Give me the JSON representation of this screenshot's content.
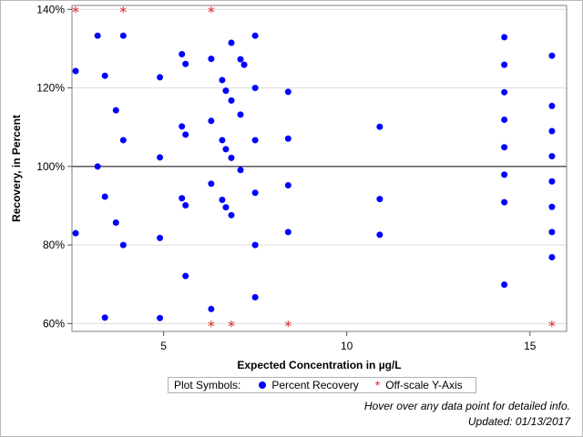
{
  "chart_data": {
    "type": "scatter",
    "title": "",
    "xlabel": "Expected Concentration in µg/L",
    "ylabel": "Recovery, in Percent",
    "xlim": [
      2.5,
      16
    ],
    "ylim": [
      58,
      141
    ],
    "x_ticks": [
      5,
      10,
      15
    ],
    "x_tick_labels": [
      "5",
      "10",
      "15"
    ],
    "y_ticks": [
      60,
      80,
      100,
      120,
      140
    ],
    "y_tick_labels": [
      "60%",
      "80%",
      "100%",
      "120%",
      "140%"
    ],
    "reference_line": 100,
    "grid": "horizontal",
    "series": [
      {
        "name": "Percent Recovery",
        "color": "#0000ff",
        "marker": "circle",
        "points": [
          {
            "x": 2.6,
            "y": 124.3
          },
          {
            "x": 2.6,
            "y": 83
          },
          {
            "x": 3.2,
            "y": 133.3
          },
          {
            "x": 3.2,
            "y": 100
          },
          {
            "x": 3.4,
            "y": 123.1
          },
          {
            "x": 3.4,
            "y": 92.3
          },
          {
            "x": 3.4,
            "y": 61.5
          },
          {
            "x": 3.7,
            "y": 114.3
          },
          {
            "x": 3.7,
            "y": 85.7
          },
          {
            "x": 3.9,
            "y": 133.3
          },
          {
            "x": 3.9,
            "y": 106.7
          },
          {
            "x": 3.9,
            "y": 80
          },
          {
            "x": 4.9,
            "y": 122.7
          },
          {
            "x": 4.9,
            "y": 102.3
          },
          {
            "x": 4.9,
            "y": 81.8
          },
          {
            "x": 4.9,
            "y": 61.4
          },
          {
            "x": 5.5,
            "y": 128.6
          },
          {
            "x": 5.5,
            "y": 110.2
          },
          {
            "x": 5.5,
            "y": 91.9
          },
          {
            "x": 5.6,
            "y": 126.1
          },
          {
            "x": 5.6,
            "y": 108.1
          },
          {
            "x": 5.6,
            "y": 90.1
          },
          {
            "x": 5.6,
            "y": 72.1
          },
          {
            "x": 6.3,
            "y": 127.4
          },
          {
            "x": 6.3,
            "y": 111.6
          },
          {
            "x": 6.3,
            "y": 95.6
          },
          {
            "x": 6.3,
            "y": 63.7
          },
          {
            "x": 6.6,
            "y": 122
          },
          {
            "x": 6.6,
            "y": 106.7
          },
          {
            "x": 6.6,
            "y": 91.5
          },
          {
            "x": 6.7,
            "y": 119.3
          },
          {
            "x": 6.7,
            "y": 104.4
          },
          {
            "x": 6.7,
            "y": 89.6
          },
          {
            "x": 6.85,
            "y": 131.5
          },
          {
            "x": 6.85,
            "y": 116.8
          },
          {
            "x": 6.85,
            "y": 102.2
          },
          {
            "x": 6.85,
            "y": 87.6
          },
          {
            "x": 7.1,
            "y": 127.3
          },
          {
            "x": 7.1,
            "y": 113.2
          },
          {
            "x": 7.1,
            "y": 99.1
          },
          {
            "x": 7.2,
            "y": 125.9
          },
          {
            "x": 7.5,
            "y": 133.3
          },
          {
            "x": 7.5,
            "y": 120
          },
          {
            "x": 7.5,
            "y": 106.7
          },
          {
            "x": 7.5,
            "y": 93.3
          },
          {
            "x": 7.5,
            "y": 80
          },
          {
            "x": 7.5,
            "y": 66.7
          },
          {
            "x": 8.4,
            "y": 119
          },
          {
            "x": 8.4,
            "y": 107.1
          },
          {
            "x": 8.4,
            "y": 95.2
          },
          {
            "x": 8.4,
            "y": 83.3
          },
          {
            "x": 10.9,
            "y": 110.1
          },
          {
            "x": 10.9,
            "y": 91.7
          },
          {
            "x": 10.9,
            "y": 82.6
          },
          {
            "x": 14.3,
            "y": 132.9
          },
          {
            "x": 14.3,
            "y": 125.9
          },
          {
            "x": 14.3,
            "y": 118.9
          },
          {
            "x": 14.3,
            "y": 111.9
          },
          {
            "x": 14.3,
            "y": 104.9
          },
          {
            "x": 14.3,
            "y": 97.9
          },
          {
            "x": 14.3,
            "y": 90.9
          },
          {
            "x": 14.3,
            "y": 69.9
          },
          {
            "x": 15.6,
            "y": 128.2
          },
          {
            "x": 15.6,
            "y": 115.4
          },
          {
            "x": 15.6,
            "y": 109
          },
          {
            "x": 15.6,
            "y": 102.6
          },
          {
            "x": 15.6,
            "y": 96.2
          },
          {
            "x": 15.6,
            "y": 89.7
          },
          {
            "x": 15.6,
            "y": 83.3
          },
          {
            "x": 15.6,
            "y": 76.9
          }
        ]
      },
      {
        "name": "Off-scale Y-Axis",
        "color": "#e02020",
        "marker": "asterisk",
        "points": [
          {
            "x": 2.6,
            "y": 140
          },
          {
            "x": 3.9,
            "y": 140
          },
          {
            "x": 6.3,
            "y": 140
          },
          {
            "x": 6.3,
            "y": 60
          },
          {
            "x": 6.85,
            "y": 60
          },
          {
            "x": 8.4,
            "y": 60
          },
          {
            "x": 15.6,
            "y": 60
          }
        ]
      }
    ]
  },
  "legend": {
    "title": "Plot Symbols:",
    "items": [
      "Percent Recovery",
      "Off-scale Y-Axis"
    ]
  },
  "footnotes": {
    "hover": "Hover over any data point for detailed info.",
    "updated": "Updated: 01/13/2017"
  }
}
